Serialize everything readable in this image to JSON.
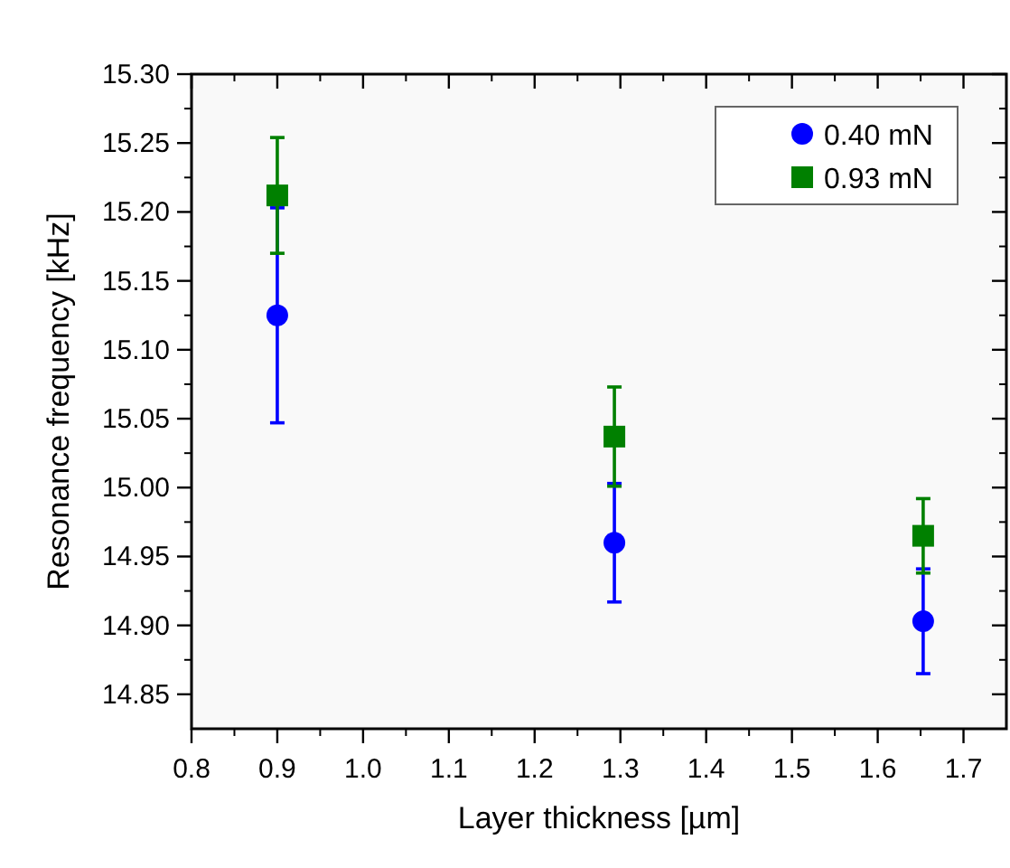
{
  "chart_data": {
    "type": "scatter",
    "xlabel": "Layer thickness [µm]",
    "ylabel": "Resonance frequency [kHz]",
    "xlim": [
      0.8,
      1.75
    ],
    "xticks": [
      0.8,
      0.9,
      {
        "value": 1.0,
        "label": "1.0"
      },
      1.1,
      1.2,
      1.3,
      1.4,
      1.5,
      1.6,
      1.7
    ],
    "ylim": [
      14.825,
      15.3
    ],
    "yticks": [
      {
        "value": 14.85,
        "label": "14.85"
      },
      {
        "value": 14.9,
        "label": "14.90"
      },
      {
        "value": 14.95,
        "label": "14.95"
      },
      {
        "value": 15.0,
        "label": "15.00"
      },
      {
        "value": 15.05,
        "label": "15.05"
      },
      {
        "value": 15.1,
        "label": "15.10"
      },
      {
        "value": 15.15,
        "label": "15.15"
      },
      {
        "value": 15.2,
        "label": "15.20"
      },
      {
        "value": 15.25,
        "label": "15.25"
      },
      {
        "value": 15.3,
        "label": "15.30"
      }
    ],
    "grid": false,
    "legend": "top right",
    "series": [
      {
        "name": "0.40 mN",
        "color": "#0000ff",
        "marker": "circle",
        "x": [
          0.9,
          1.293,
          1.653
        ],
        "values": [
          15.125,
          14.96,
          14.903
        ],
        "errors": [
          0.078,
          0.043,
          0.038
        ]
      },
      {
        "name": "0.93 mN",
        "color": "#008000",
        "marker": "square",
        "x": [
          0.9,
          1.293,
          1.653
        ],
        "values": [
          15.212,
          15.037,
          14.965
        ],
        "errors": [
          0.042,
          0.036,
          0.027
        ]
      }
    ]
  }
}
